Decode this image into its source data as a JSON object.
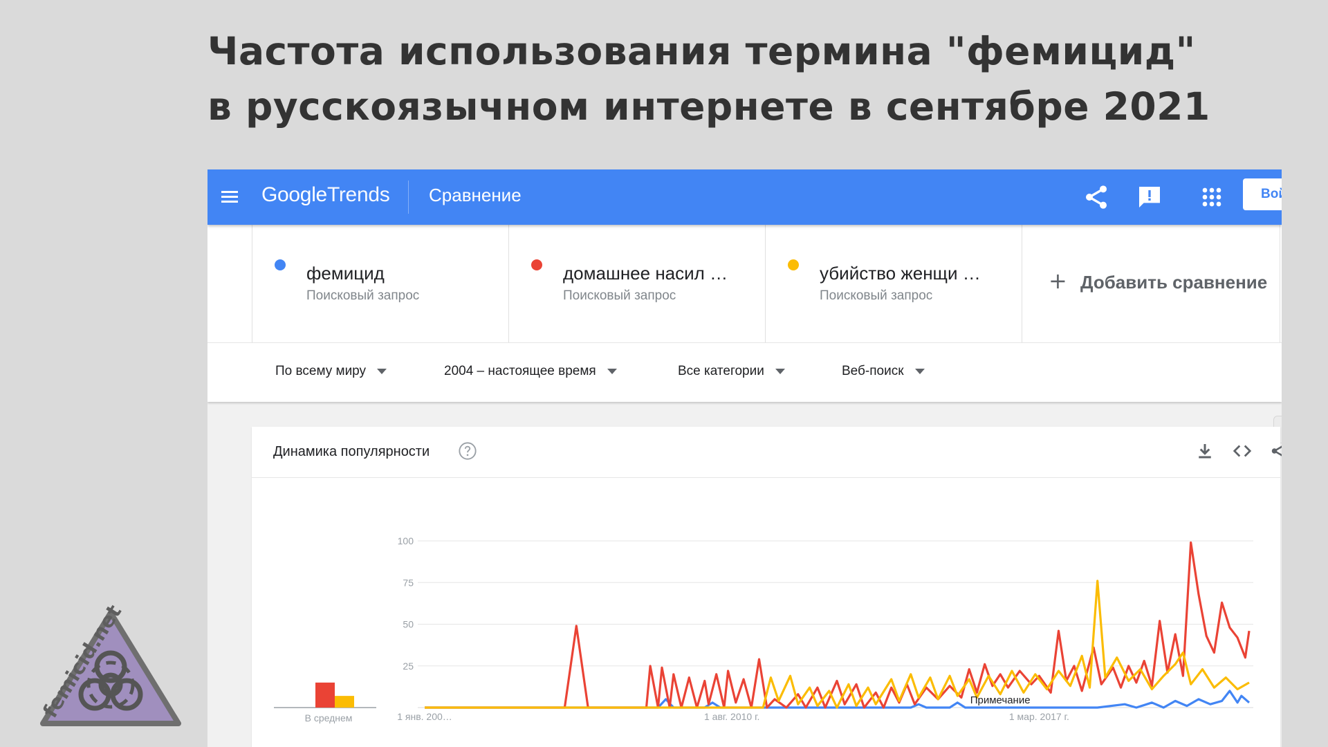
{
  "headline": {
    "line1": "Частота использования термина \"фемицид\"",
    "line2": "в русскоязычном интернете в сентябре 2021"
  },
  "topbar": {
    "logo_google": "Google",
    "logo_trends": "Trends",
    "page_label": "Сравнение",
    "signin_label": "Вой",
    "icons": [
      "menu-icon",
      "share-icon",
      "feedback-icon",
      "apps-icon"
    ]
  },
  "terms": [
    {
      "name": "фемицид",
      "type": "Поисковый запрос",
      "color": "#4285f4"
    },
    {
      "name": "домашнее насил …",
      "type": "Поисковый запрос",
      "color": "#ea4335"
    },
    {
      "name": "убийство женщи …",
      "type": "Поисковый запрос",
      "color": "#fbbc04"
    }
  ],
  "add_compare": {
    "label": "Добавить сравнение"
  },
  "filters": {
    "region": "По всему миру",
    "period": "2004 – настоящее время",
    "category": "Все категории",
    "search_type": "Веб-поиск"
  },
  "card": {
    "title": "Динамика популярности",
    "icons": [
      "help-icon",
      "download-icon",
      "embed-icon",
      "share-icon"
    ]
  },
  "badge": {
    "text": "femicid.net",
    "icon": "biohazard-icon",
    "color": "#a08fbe"
  },
  "chart_data": {
    "type": "line",
    "title": "",
    "xlabel": "",
    "ylabel": "",
    "ylim": [
      0,
      100
    ],
    "yticks": [
      25,
      50,
      75,
      100
    ],
    "xlim": [
      "2004-01",
      "2021-09"
    ],
    "xticks": [
      {
        "x": "2004-01",
        "label": "1 янв. 200…"
      },
      {
        "x": "2010-08",
        "label": "1 авг. 2010 г."
      },
      {
        "x": "2017-03",
        "label": "1 мар. 2017 г."
      }
    ],
    "annotation": {
      "x": "2016-05",
      "label": "Примечание"
    },
    "averages": {
      "label": "В среднем",
      "values": [
        0,
        15,
        7
      ]
    },
    "series": [
      {
        "name": "фемицид",
        "color": "#4285f4",
        "points": [
          [
            "2004-01",
            0
          ],
          [
            "2009-01",
            0
          ],
          [
            "2009-03",
            5
          ],
          [
            "2009-05",
            0
          ],
          [
            "2010-01",
            0
          ],
          [
            "2010-03",
            3
          ],
          [
            "2010-05",
            0
          ],
          [
            "2014-06",
            0
          ],
          [
            "2014-08",
            2
          ],
          [
            "2014-10",
            0
          ],
          [
            "2015-04",
            0
          ],
          [
            "2015-06",
            3
          ],
          [
            "2015-08",
            0
          ],
          [
            "2018-06",
            0
          ],
          [
            "2019-01",
            2
          ],
          [
            "2019-04",
            0
          ],
          [
            "2019-08",
            3
          ],
          [
            "2019-11",
            0
          ],
          [
            "2020-02",
            4
          ],
          [
            "2020-05",
            1
          ],
          [
            "2020-08",
            5
          ],
          [
            "2020-11",
            2
          ],
          [
            "2021-02",
            4
          ],
          [
            "2021-04",
            10
          ],
          [
            "2021-06",
            3
          ],
          [
            "2021-07",
            7
          ],
          [
            "2021-09",
            3
          ]
        ]
      },
      {
        "name": "домашнее насил …",
        "color": "#ea4335",
        "points": [
          [
            "2004-01",
            0
          ],
          [
            "2007-01",
            0
          ],
          [
            "2007-04",
            49
          ],
          [
            "2007-07",
            0
          ],
          [
            "2008-10",
            0
          ],
          [
            "2008-11",
            25
          ],
          [
            "2009-01",
            0
          ],
          [
            "2009-02",
            24
          ],
          [
            "2009-04",
            0
          ],
          [
            "2009-05",
            20
          ],
          [
            "2009-07",
            0
          ],
          [
            "2009-09",
            18
          ],
          [
            "2009-11",
            0
          ],
          [
            "2010-01",
            16
          ],
          [
            "2010-02",
            2
          ],
          [
            "2010-04",
            20
          ],
          [
            "2010-06",
            0
          ],
          [
            "2010-07",
            22
          ],
          [
            "2010-09",
            3
          ],
          [
            "2010-11",
            17
          ],
          [
            "2011-01",
            0
          ],
          [
            "2011-03",
            29
          ],
          [
            "2011-05",
            0
          ],
          [
            "2011-07",
            5
          ],
          [
            "2011-10",
            0
          ],
          [
            "2012-01",
            8
          ],
          [
            "2012-03",
            0
          ],
          [
            "2012-06",
            12
          ],
          [
            "2012-08",
            0
          ],
          [
            "2012-11",
            16
          ],
          [
            "2013-01",
            2
          ],
          [
            "2013-04",
            14
          ],
          [
            "2013-06",
            0
          ],
          [
            "2013-09",
            9
          ],
          [
            "2013-11",
            0
          ],
          [
            "2014-01",
            12
          ],
          [
            "2014-03",
            3
          ],
          [
            "2014-05",
            14
          ],
          [
            "2014-07",
            2
          ],
          [
            "2014-10",
            12
          ],
          [
            "2015-01",
            5
          ],
          [
            "2015-04",
            13
          ],
          [
            "2015-07",
            6
          ],
          [
            "2015-09",
            23
          ],
          [
            "2015-11",
            9
          ],
          [
            "2016-01",
            26
          ],
          [
            "2016-03",
            13
          ],
          [
            "2016-05",
            20
          ],
          [
            "2016-07",
            12
          ],
          [
            "2016-10",
            22
          ],
          [
            "2017-01",
            14
          ],
          [
            "2017-03",
            19
          ],
          [
            "2017-06",
            9
          ],
          [
            "2017-08",
            46
          ],
          [
            "2017-10",
            16
          ],
          [
            "2017-12",
            25
          ],
          [
            "2018-02",
            10
          ],
          [
            "2018-05",
            36
          ],
          [
            "2018-07",
            14
          ],
          [
            "2018-10",
            24
          ],
          [
            "2018-12",
            12
          ],
          [
            "2019-02",
            25
          ],
          [
            "2019-04",
            15
          ],
          [
            "2019-06",
            28
          ],
          [
            "2019-08",
            13
          ],
          [
            "2019-10",
            52
          ],
          [
            "2019-12",
            21
          ],
          [
            "2020-02",
            44
          ],
          [
            "2020-04",
            19
          ],
          [
            "2020-06",
            99
          ],
          [
            "2020-08",
            68
          ],
          [
            "2020-10",
            43
          ],
          [
            "2020-12",
            33
          ],
          [
            "2021-02",
            63
          ],
          [
            "2021-04",
            48
          ],
          [
            "2021-06",
            42
          ],
          [
            "2021-08",
            30
          ],
          [
            "2021-09",
            46
          ]
        ]
      },
      {
        "name": "убийство женщи …",
        "color": "#fbbc04",
        "points": [
          [
            "2004-01",
            0
          ],
          [
            "2011-04",
            0
          ],
          [
            "2011-06",
            18
          ],
          [
            "2011-08",
            4
          ],
          [
            "2011-11",
            19
          ],
          [
            "2012-01",
            2
          ],
          [
            "2012-04",
            12
          ],
          [
            "2012-06",
            1
          ],
          [
            "2012-09",
            10
          ],
          [
            "2012-11",
            0
          ],
          [
            "2013-02",
            14
          ],
          [
            "2013-04",
            1
          ],
          [
            "2013-07",
            12
          ],
          [
            "2013-09",
            2
          ],
          [
            "2014-01",
            17
          ],
          [
            "2014-03",
            4
          ],
          [
            "2014-06",
            20
          ],
          [
            "2014-08",
            6
          ],
          [
            "2014-11",
            18
          ],
          [
            "2015-01",
            5
          ],
          [
            "2015-04",
            19
          ],
          [
            "2015-06",
            7
          ],
          [
            "2015-09",
            17
          ],
          [
            "2015-11",
            6
          ],
          [
            "2016-02",
            19
          ],
          [
            "2016-05",
            8
          ],
          [
            "2016-08",
            22
          ],
          [
            "2016-11",
            9
          ],
          [
            "2017-02",
            20
          ],
          [
            "2017-05",
            11
          ],
          [
            "2017-08",
            22
          ],
          [
            "2017-11",
            13
          ],
          [
            "2018-02",
            31
          ],
          [
            "2018-04",
            12
          ],
          [
            "2018-06",
            76
          ],
          [
            "2018-08",
            18
          ],
          [
            "2018-11",
            30
          ],
          [
            "2019-02",
            16
          ],
          [
            "2019-05",
            23
          ],
          [
            "2019-08",
            11
          ],
          [
            "2019-11",
            19
          ],
          [
            "2020-02",
            26
          ],
          [
            "2020-04",
            33
          ],
          [
            "2020-06",
            14
          ],
          [
            "2020-09",
            23
          ],
          [
            "2020-12",
            12
          ],
          [
            "2021-03",
            18
          ],
          [
            "2021-06",
            11
          ],
          [
            "2021-09",
            15
          ]
        ]
      }
    ]
  }
}
